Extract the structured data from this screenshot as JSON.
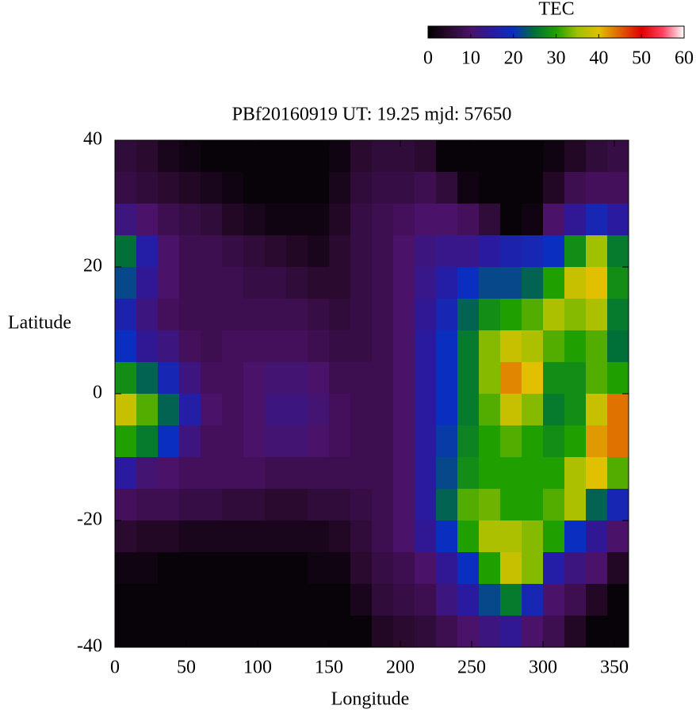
{
  "chart_data": {
    "type": "heatmap",
    "title": "PBf20160919  UT: 19.25  mjd: 57650",
    "xlabel": "Longitude",
    "ylabel": "Latitude",
    "colorbar_label": "TEC",
    "x": [
      7.5,
      22.5,
      37.5,
      52.5,
      67.5,
      82.5,
      97.5,
      112.5,
      127.5,
      142.5,
      157.5,
      172.5,
      187.5,
      202.5,
      217.5,
      232.5,
      247.5,
      262.5,
      277.5,
      292.5,
      307.5,
      322.5,
      337.5,
      352.5
    ],
    "y": [
      37.5,
      32.5,
      27.5,
      22.5,
      17.5,
      12.5,
      7.5,
      2.5,
      -2.5,
      -7.5,
      -12.5,
      -17.5,
      -22.5,
      -27.5,
      -32.5,
      -37.5
    ],
    "z": [
      [
        6,
        5,
        3,
        2,
        1,
        1,
        1,
        1,
        1,
        1,
        2,
        5,
        6,
        6,
        5,
        1,
        1,
        1,
        1,
        1,
        2,
        4,
        6,
        7
      ],
      [
        7,
        6,
        5,
        4,
        3,
        2,
        1,
        1,
        1,
        1,
        3,
        6,
        7,
        7,
        8,
        6,
        2,
        1,
        1,
        1,
        4,
        8,
        9,
        9
      ],
      [
        12,
        10,
        8,
        7,
        6,
        4,
        3,
        2,
        2,
        2,
        4,
        7,
        8,
        9,
        10,
        10,
        9,
        6,
        1,
        2,
        10,
        14,
        18,
        15
      ],
      [
        25,
        16,
        10,
        8,
        8,
        7,
        6,
        5,
        4,
        3,
        5,
        7,
        8,
        10,
        12,
        13,
        13,
        15,
        17,
        18,
        20,
        28,
        35,
        26
      ],
      [
        22,
        14,
        10,
        8,
        8,
        8,
        7,
        7,
        6,
        5,
        5,
        7,
        8,
        10,
        13,
        16,
        20,
        22,
        22,
        24,
        30,
        38,
        40,
        28
      ],
      [
        17,
        12,
        9,
        8,
        8,
        8,
        8,
        8,
        8,
        7,
        6,
        7,
        8,
        10,
        14,
        18,
        24,
        28,
        30,
        32,
        36,
        34,
        36,
        26
      ],
      [
        20,
        14,
        12,
        9,
        8,
        9,
        9,
        9,
        9,
        8,
        7,
        7,
        8,
        10,
        15,
        20,
        26,
        34,
        38,
        36,
        32,
        30,
        32,
        25
      ],
      [
        28,
        24,
        18,
        12,
        9,
        9,
        10,
        11,
        11,
        10,
        8,
        8,
        8,
        10,
        15,
        20,
        26,
        34,
        43,
        40,
        28,
        28,
        32,
        30
      ],
      [
        38,
        32,
        24,
        16,
        10,
        9,
        10,
        12,
        12,
        11,
        9,
        8,
        8,
        10,
        15,
        20,
        26,
        32,
        38,
        34,
        26,
        28,
        38,
        44
      ],
      [
        30,
        26,
        20,
        12,
        9,
        9,
        10,
        11,
        11,
        10,
        9,
        8,
        8,
        10,
        15,
        21,
        27,
        30,
        32,
        30,
        28,
        30,
        42,
        44
      ],
      [
        15,
        11,
        10,
        9,
        9,
        9,
        9,
        8,
        8,
        8,
        8,
        8,
        8,
        10,
        15,
        22,
        28,
        30,
        30,
        30,
        30,
        36,
        40,
        32
      ],
      [
        9,
        8,
        8,
        7,
        7,
        6,
        6,
        5,
        5,
        6,
        6,
        7,
        8,
        10,
        15,
        24,
        32,
        33,
        30,
        30,
        32,
        36,
        24,
        18
      ],
      [
        5,
        4,
        4,
        3,
        3,
        3,
        3,
        3,
        3,
        3,
        4,
        6,
        8,
        10,
        14,
        20,
        30,
        36,
        36,
        34,
        30,
        20,
        14,
        10
      ],
      [
        2,
        2,
        1,
        1,
        1,
        1,
        1,
        1,
        1,
        2,
        2,
        5,
        7,
        8,
        10,
        14,
        20,
        30,
        38,
        34,
        16,
        12,
        10,
        4
      ],
      [
        1,
        1,
        1,
        1,
        1,
        1,
        1,
        1,
        1,
        1,
        1,
        3,
        6,
        7,
        8,
        12,
        15,
        22,
        26,
        18,
        10,
        8,
        4,
        1
      ],
      [
        1,
        1,
        1,
        1,
        1,
        1,
        1,
        1,
        1,
        1,
        1,
        1,
        4,
        5,
        6,
        8,
        10,
        12,
        14,
        10,
        8,
        4,
        1,
        1
      ]
    ],
    "xlim": [
      0,
      360
    ],
    "xticks": [
      0,
      50,
      100,
      150,
      200,
      250,
      300,
      350
    ],
    "ylim": [
      -40,
      40
    ],
    "yticks": [
      -40,
      -20,
      0,
      20,
      40
    ],
    "clim": [
      0,
      60
    ],
    "cticks": [
      0,
      10,
      20,
      30,
      40,
      50,
      60
    ],
    "colormap": [
      "#000000",
      "#2a0a2e",
      "#4a1268",
      "#2a1aa0",
      "#0a2ec0",
      "#007038",
      "#20a000",
      "#a0c000",
      "#e0c000",
      "#e06000",
      "#e00000",
      "#ff4060",
      "#ffffff"
    ]
  }
}
